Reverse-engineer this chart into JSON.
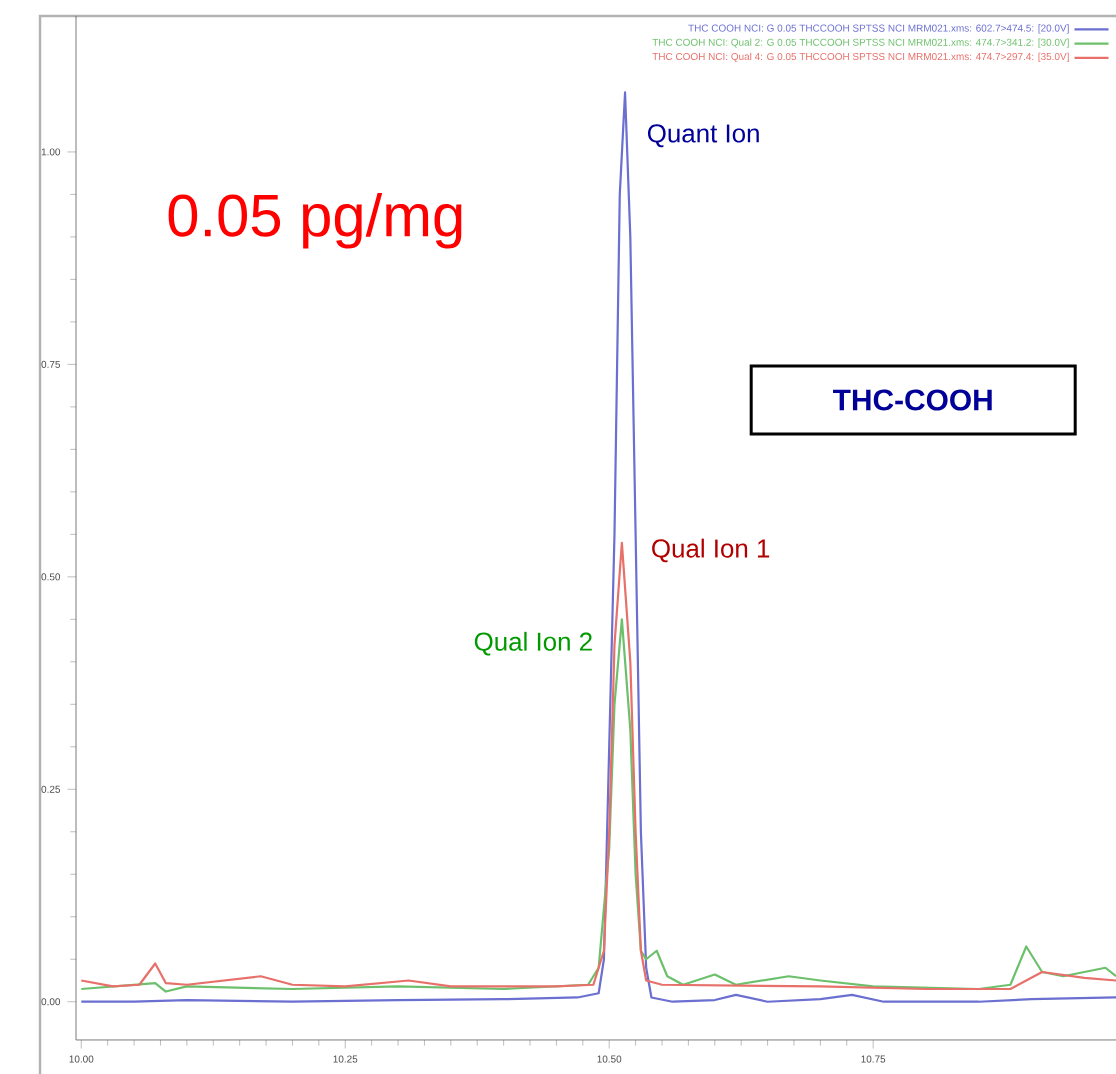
{
  "chart_data": {
    "type": "line",
    "xlim": [
      9.995,
      10.98
    ],
    "ylim": [
      -0.045,
      1.16
    ],
    "xticks": [
      {
        "value": 10.0,
        "label": "10.00"
      },
      {
        "value": 10.25,
        "label": "10.25"
      },
      {
        "value": 10.5,
        "label": "10.50"
      },
      {
        "value": 10.75,
        "label": "10.75"
      }
    ],
    "yticks": [
      {
        "value": 0,
        "label": "0.00"
      },
      {
        "value": 0.25,
        "label": "0.25"
      },
      {
        "value": 0.5,
        "label": "0.50"
      },
      {
        "value": 0.75,
        "label": "0.75"
      },
      {
        "value": 1.0,
        "label": "1.00"
      }
    ],
    "legend": "top right",
    "grid": false,
    "marker": "none",
    "line_style": "solid",
    "series": [
      {
        "name": "THC COOH NCI: G 0.05 THCCOOH SPTSS NCI MRM021.xms: 602.7>474.5: [20.0V]",
        "color": "#6a6fd0",
        "x": [
          10.0,
          10.05,
          10.1,
          10.2,
          10.3,
          10.4,
          10.47,
          10.49,
          10.495,
          10.5,
          10.505,
          10.51,
          10.515,
          10.52,
          10.525,
          10.53,
          10.535,
          10.54,
          10.56,
          10.6,
          10.62,
          10.65,
          10.7,
          10.73,
          10.76,
          10.85,
          10.9,
          10.98
        ],
        "values": [
          0.0,
          0.0,
          0.002,
          0.0,
          0.002,
          0.003,
          0.005,
          0.01,
          0.05,
          0.3,
          0.55,
          0.95,
          1.07,
          0.9,
          0.55,
          0.2,
          0.04,
          0.005,
          0.0,
          0.002,
          0.008,
          0.0,
          0.003,
          0.008,
          0.0,
          0.0,
          0.003,
          0.005
        ]
      },
      {
        "name": "THC COOH NCI: Qual 2: G 0.05 THCCOOH SPTSS NCI MRM021.xms: 474.7>341.2: [30.0V]",
        "color": "#6cc06c",
        "x": [
          10.0,
          10.07,
          10.08,
          10.1,
          10.2,
          10.3,
          10.4,
          10.48,
          10.49,
          10.5,
          10.505,
          10.512,
          10.52,
          10.525,
          10.53,
          10.535,
          10.545,
          10.555,
          10.57,
          10.6,
          10.62,
          10.67,
          10.7,
          10.75,
          10.85,
          10.88,
          10.895,
          10.91,
          10.93,
          10.95,
          10.97,
          10.98
        ],
        "values": [
          0.015,
          0.022,
          0.012,
          0.018,
          0.015,
          0.018,
          0.015,
          0.02,
          0.04,
          0.18,
          0.35,
          0.45,
          0.32,
          0.15,
          0.06,
          0.05,
          0.06,
          0.03,
          0.02,
          0.032,
          0.02,
          0.03,
          0.025,
          0.018,
          0.015,
          0.02,
          0.065,
          0.035,
          0.03,
          0.035,
          0.04,
          0.03
        ]
      },
      {
        "name": "THC COOH NCI: Qual 4: G 0.05 THCCOOH SPTSS NCI MRM021.xms: 474.7>297.4: [35.0V]",
        "color": "#e8706a",
        "x": [
          10.0,
          10.03,
          10.055,
          10.07,
          10.08,
          10.1,
          10.17,
          10.2,
          10.25,
          10.31,
          10.35,
          10.45,
          10.485,
          10.495,
          10.5,
          10.505,
          10.512,
          10.52,
          10.525,
          10.53,
          10.535,
          10.55,
          10.7,
          10.8,
          10.88,
          10.91,
          10.95,
          10.98
        ],
        "values": [
          0.025,
          0.018,
          0.02,
          0.045,
          0.022,
          0.02,
          0.03,
          0.02,
          0.018,
          0.025,
          0.018,
          0.018,
          0.02,
          0.06,
          0.2,
          0.42,
          0.54,
          0.4,
          0.2,
          0.06,
          0.025,
          0.02,
          0.018,
          0.015,
          0.015,
          0.035,
          0.028,
          0.025
        ]
      }
    ],
    "annotations": [
      "0.05 pg/mg",
      "THC-COOH",
      "Quant Ion",
      "Qual Ion 1",
      "Qual Ion 2"
    ]
  }
}
